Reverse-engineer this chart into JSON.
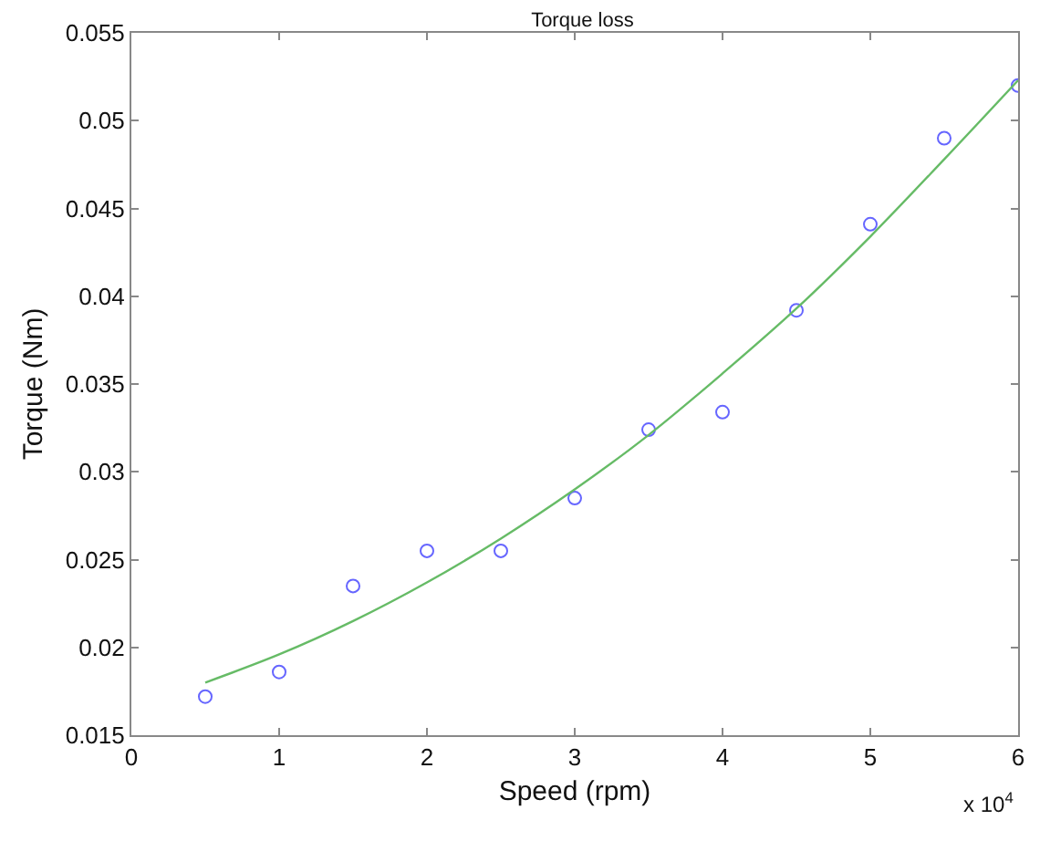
{
  "chart_data": {
    "type": "scatter",
    "title": "Torque loss",
    "xlabel": "Speed (rpm)",
    "ylabel": "Torque (Nm)",
    "annotations": [
      "x 10$^{4}$"
    ],
    "xlim": [
      0,
      6
    ],
    "xticks": [
      0,
      1,
      2,
      3,
      4,
      5,
      6
    ],
    "ylim": [
      0.015,
      0.055
    ],
    "yticks": [
      0.015,
      0.02,
      0.025,
      0.03,
      0.035,
      0.04,
      0.045,
      0.05,
      0.055
    ],
    "grid": false,
    "series": [
      {
        "marker": "circle",
        "color": "#6666ff",
        "x": [
          0.5,
          1,
          1.5,
          2,
          2.5,
          3,
          3.5,
          4,
          4.5,
          5,
          5.5,
          6
        ],
        "values": [
          0.0172,
          0.0186,
          0.0235,
          0.0255,
          0.0255,
          0.0285,
          0.0324,
          0.0334,
          0.0392,
          0.0441,
          0.049,
          0.052
        ]
      },
      {
        "type": "line",
        "marker": "none",
        "line_style": "solid",
        "color": "#66bb66",
        "x": [
          0.5,
          1,
          1.5,
          2,
          2.5,
          3,
          3.5,
          4,
          4.5,
          5,
          5.5,
          6
        ],
        "values": [
          0.018,
          0.0196,
          0.0215,
          0.0237,
          0.0262,
          0.029,
          0.0321,
          0.0356,
          0.0393,
          0.0434,
          0.0478,
          0.0523
        ]
      }
    ]
  }
}
